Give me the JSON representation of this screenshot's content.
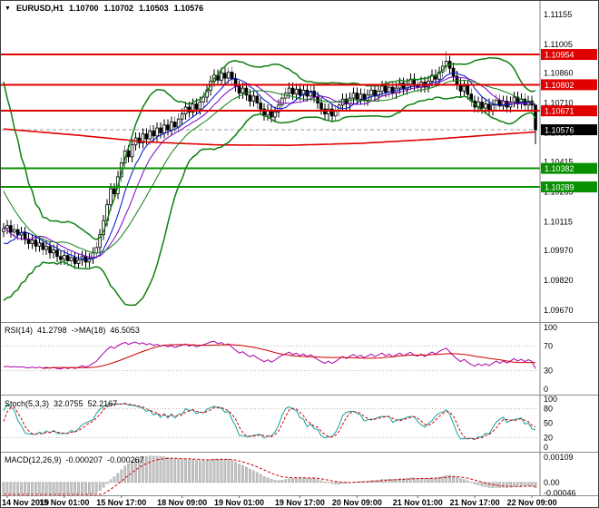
{
  "header": {
    "dropdown_icon": "▼",
    "symbol_timeframe": "EURUSD,H1",
    "open": "1.10700",
    "high": "1.10702",
    "low": "1.10503",
    "close": "1.10576"
  },
  "chart_data": {
    "type": "candlestick_with_indicators",
    "symbol": "EURUSD",
    "timeframe": "H1",
    "x_labels": [
      "14 Nov 2019",
      "15 Nov 01:00",
      "15 Nov 17:00",
      "18 Nov 09:00",
      "19 Nov 01:00",
      "19 Nov 17:00",
      "20 Nov 09:00",
      "21 Nov 01:00",
      "21 Nov 17:00",
      "22 Nov 09:00"
    ],
    "x_label_bars": [
      1,
      17,
      33,
      50,
      66,
      83,
      99,
      116,
      132,
      148
    ],
    "main": {
      "ylim": [
        1.0962,
        1.112
      ],
      "price_ticks": [
        1.11155,
        1.11005,
        1.1086,
        1.1071,
        1.1056,
        1.10415,
        1.10265,
        1.10115,
        1.0997,
        1.0982,
        1.0967
      ],
      "pre_history_closes": [
        1.1072,
        1.1078,
        1.1065,
        1.107,
        1.1055,
        1.106,
        1.1042,
        1.1048,
        1.103,
        1.1036,
        1.1018,
        1.1024,
        1.1005,
        1.1012,
        1.0995,
        1.1002,
        1.0988,
        1.0994,
        1.1,
        1.10065
      ],
      "first_open": 1.10065,
      "default_wick": 0.00028,
      "wick_overrides": {
        "20": {
          "low": 1.09878
        },
        "63": {
          "high": 1.10888
        },
        "124": {
          "high": 1.1097
        },
        "149": {
          "high": 1.10702,
          "low": 1.10503
        }
      },
      "closes": [
        1.1008,
        1.10095,
        1.10062,
        1.10075,
        1.10048,
        1.1006,
        1.10028,
        1.10005,
        1.10022,
        1.09992,
        1.10008,
        1.09975,
        1.0999,
        1.09958,
        1.09972,
        1.0994,
        1.09925,
        1.09945,
        1.09918,
        1.09935,
        1.09905,
        1.09922,
        1.0994,
        1.09912,
        1.0993,
        1.09958,
        1.09985,
        1.1005,
        1.1012,
        1.102,
        1.1028,
        1.10255,
        1.1034,
        1.1041,
        1.1047,
        1.1044,
        1.105,
        1.10535,
        1.1051,
        1.10555,
        1.1053,
        1.1057,
        1.10545,
        1.10585,
        1.1056,
        1.106,
        1.10575,
        1.10615,
        1.1059,
        1.1063,
        1.10655,
        1.1069,
        1.10665,
        1.10705,
        1.1068,
        1.10715,
        1.1074,
        1.10775,
        1.1082,
        1.1085,
        1.10825,
        1.1086,
        1.10835,
        1.10865,
        1.1083,
        1.10795,
        1.1076,
        1.10785,
        1.1075,
        1.1072,
        1.10745,
        1.1071,
        1.1068,
        1.1065,
        1.10675,
        1.1064,
        1.10665,
        1.107,
        1.10735,
        1.1076,
        1.10785,
        1.10755,
        1.1078,
        1.1075,
        1.10775,
        1.10745,
        1.1077,
        1.1074,
        1.1071,
        1.1068,
        1.10655,
        1.1068,
        1.10645,
        1.1067,
        1.107,
        1.1073,
        1.10705,
        1.10735,
        1.1076,
        1.1073,
        1.10755,
        1.10725,
        1.1075,
        1.10775,
        1.10745,
        1.1077,
        1.10795,
        1.10765,
        1.1079,
        1.1076,
        1.10785,
        1.1081,
        1.1078,
        1.10805,
        1.1083,
        1.108,
        1.1079,
        1.10815,
        1.1079,
        1.1082,
        1.1085,
        1.1083,
        1.10865,
        1.10895,
        1.1092,
        1.10885,
        1.10845,
        1.10805,
        1.1077,
        1.10795,
        1.10755,
        1.1072,
        1.1069,
        1.10715,
        1.10685,
        1.10705,
        1.10675,
        1.107,
        1.10725,
        1.10695,
        1.1072,
        1.1069,
        1.10715,
        1.1074,
        1.1071,
        1.1073,
        1.107,
        1.1072,
        1.107,
        1.10576
      ],
      "levels": [
        {
          "value": 1.10954,
          "label": "1.10954",
          "color": "#e00000",
          "width": 2
        },
        {
          "value": 1.10802,
          "label": "1.10802",
          "color": "#e00000",
          "width": 2
        },
        {
          "value": 1.10671,
          "label": "1.10671",
          "color": "#e00000",
          "width": 2
        },
        {
          "value": 1.10382,
          "label": "1.10382",
          "color": "#089000",
          "width": 2
        },
        {
          "value": 1.10289,
          "label": "1.10289",
          "color": "#089000",
          "width": 2
        }
      ],
      "bid": {
        "value": 1.10576,
        "label": "1.10576",
        "tag_bg": "#000000",
        "tag_fg": "#ffffff"
      },
      "bollinger": {
        "period": 20,
        "deviation": 2,
        "color": "#0f7f0f"
      },
      "ma_fast": {
        "period": 8,
        "color": "#0010d0"
      },
      "ma_mid": {
        "period": 13,
        "color": "#8000c0"
      },
      "ma_slow": {
        "color": "#e00000",
        "waypoints": [
          [
            0,
            1.1058
          ],
          [
            20,
            1.1055
          ],
          [
            40,
            1.10515
          ],
          [
            60,
            1.105
          ],
          [
            80,
            1.10498
          ],
          [
            100,
            1.10508
          ],
          [
            120,
            1.10528
          ],
          [
            135,
            1.10548
          ],
          [
            149,
            1.10565
          ]
        ]
      }
    },
    "rsi": {
      "name": "RSI(14)",
      "value": "41.2798",
      "ma_name": "->MA(18)",
      "ma_value": "46.5053",
      "period": 14,
      "ma_period": 18,
      "ticks": [
        100,
        70,
        30,
        0
      ],
      "grid": [
        70,
        30
      ],
      "color": "#aa00aa",
      "ma_color": "#d00000"
    },
    "stoch": {
      "name": "Stoch(5,3,3)",
      "value": "32.0755",
      "signal_value": "52.2167",
      "k": 5,
      "d": 3,
      "slowing": 3,
      "ticks": [
        100,
        80,
        50,
        20,
        0
      ],
      "grid": [
        80,
        20
      ],
      "color": "#14a0a0",
      "signal_color": "#d00000"
    },
    "macd": {
      "name": "MACD(12,26,9)",
      "value": "-0.000207",
      "signal_value": "-0.000267",
      "fast": 12,
      "slow": 26,
      "signal": 9,
      "ticks": [
        {
          "label": "0.00109",
          "value": 0.00109
        },
        {
          "label": "0.00",
          "value": 0
        },
        {
          "label": "-0.00046",
          "value": -0.00046
        }
      ],
      "ylim": [
        -0.00052,
        0.00125
      ],
      "target_max": 0.00115,
      "hist_color": "#c4c4c4",
      "hist_border": "#9b9b9b",
      "signal_color": "#d00000"
    }
  }
}
